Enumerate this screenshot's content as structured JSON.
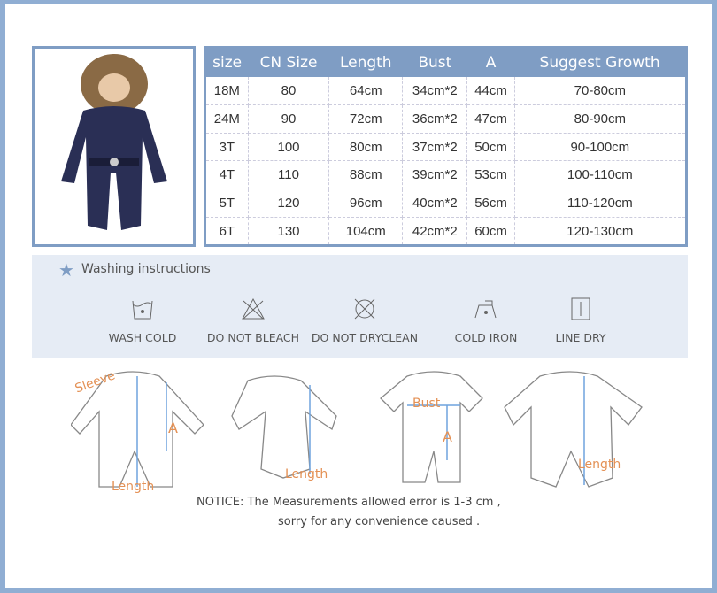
{
  "size_table": {
    "headers": [
      "size",
      "CN Size",
      "Length",
      "Bust",
      "A",
      "Suggest Growth"
    ],
    "rows": [
      [
        "18M",
        "80",
        "64cm",
        "34cm*2",
        "44cm",
        "70-80cm"
      ],
      [
        "24M",
        "90",
        "72cm",
        "36cm*2",
        "47cm",
        "80-90cm"
      ],
      [
        "3T",
        "100",
        "80cm",
        "37cm*2",
        "50cm",
        "90-100cm"
      ],
      [
        "4T",
        "110",
        "88cm",
        "39cm*2",
        "53cm",
        "100-110cm"
      ],
      [
        "5T",
        "120",
        "96cm",
        "40cm*2",
        "56cm",
        "110-120cm"
      ],
      [
        "6T",
        "130",
        "104cm",
        "42cm*2",
        "60cm",
        "120-130cm"
      ]
    ]
  },
  "washing": {
    "title": "Washing instructions",
    "items": [
      {
        "icon": "wash-cold-icon",
        "label": "WASH COLD"
      },
      {
        "icon": "do-not-bleach-icon",
        "label": "DO NOT BLEACH"
      },
      {
        "icon": "do-not-dryclean-icon",
        "label": "DO NOT DRYCLEAN"
      },
      {
        "icon": "cold-iron-icon",
        "label": "COLD IRON"
      },
      {
        "icon": "line-dry-icon",
        "label": "LINE DRY"
      }
    ]
  },
  "diagram_labels": {
    "sleeve": "Sleeve",
    "a": "A",
    "length": "Length",
    "bust": "Bust"
  },
  "notice": {
    "line1": "NOTICE:   The Measurements allowed error is 1-3 cm ,",
    "line2": "sorry for any convenience caused ."
  },
  "colors": {
    "frame": "#90aed3",
    "header": "#7f9dc4",
    "label": "#e49155",
    "suit": "#2a2f55"
  }
}
